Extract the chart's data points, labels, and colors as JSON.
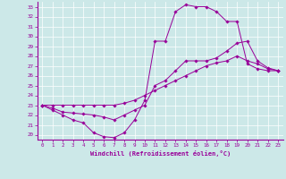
{
  "xlabel": "Windchill (Refroidissement éolien,°C)",
  "bg_color": "#cce8e8",
  "line_color": "#990099",
  "xlim": [
    -0.5,
    23.5
  ],
  "ylim": [
    19.5,
    33.5
  ],
  "xticks": [
    0,
    1,
    2,
    3,
    4,
    5,
    6,
    7,
    8,
    9,
    10,
    11,
    12,
    13,
    14,
    15,
    16,
    17,
    18,
    19,
    20,
    21,
    22,
    23
  ],
  "yticks": [
    20,
    21,
    22,
    23,
    24,
    25,
    26,
    27,
    28,
    29,
    30,
    31,
    32,
    33
  ],
  "lines": [
    {
      "x": [
        0,
        1,
        2,
        3,
        4,
        5,
        6,
        7,
        8,
        9,
        10,
        11,
        12,
        13,
        14,
        15,
        16,
        17,
        18,
        19,
        20,
        21,
        22,
        23
      ],
      "y": [
        23,
        22.5,
        22,
        21.5,
        21.2,
        20.2,
        19.8,
        19.7,
        20.2,
        21.5,
        23.5,
        29.5,
        29.5,
        32.5,
        33.2,
        33.0,
        33.0,
        32.5,
        31.5,
        31.5,
        27.2,
        26.7,
        26.5,
        26.5
      ]
    },
    {
      "x": [
        0,
        1,
        2,
        3,
        4,
        5,
        6,
        7,
        8,
        9,
        10,
        11,
        12,
        13,
        14,
        15,
        16,
        17,
        18,
        19,
        20,
        21,
        22,
        23
      ],
      "y": [
        23,
        22.7,
        22.3,
        22.2,
        22.1,
        22.0,
        21.8,
        21.5,
        22.0,
        22.5,
        23.0,
        25.0,
        25.5,
        26.5,
        27.5,
        27.5,
        27.5,
        27.8,
        28.5,
        29.3,
        29.5,
        27.5,
        26.8,
        26.5
      ]
    },
    {
      "x": [
        0,
        1,
        2,
        3,
        4,
        5,
        6,
        7,
        8,
        9,
        10,
        11,
        12,
        13,
        14,
        15,
        16,
        17,
        18,
        19,
        20,
        21,
        22,
        23
      ],
      "y": [
        23,
        23.0,
        23.0,
        23.0,
        23.0,
        23.0,
        23.0,
        23.0,
        23.2,
        23.5,
        24.0,
        24.5,
        25.0,
        25.5,
        26.0,
        26.5,
        27.0,
        27.3,
        27.5,
        28.0,
        27.5,
        27.2,
        26.7,
        26.5
      ]
    }
  ]
}
